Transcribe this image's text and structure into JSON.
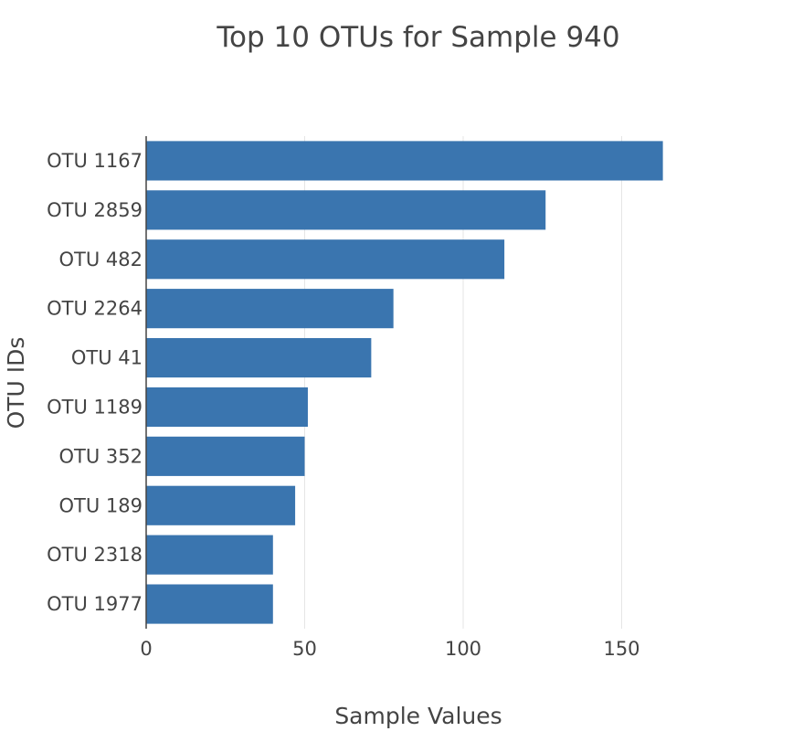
{
  "chart_data": {
    "type": "bar",
    "orientation": "horizontal",
    "title": "Top 10 OTUs for Sample 940",
    "xlabel": "Sample Values",
    "ylabel": "OTU IDs",
    "categories": [
      "OTU 1167",
      "OTU 2859",
      "OTU 482",
      "OTU 2264",
      "OTU 41",
      "OTU 1189",
      "OTU 352",
      "OTU 189",
      "OTU 2318",
      "OTU 1977"
    ],
    "values": [
      163,
      126,
      113,
      78,
      71,
      51,
      50,
      47,
      40,
      40
    ],
    "xlim": [
      0,
      200
    ],
    "xticks": [
      0,
      50,
      100,
      150
    ],
    "xtick_labels": [
      "0",
      "50",
      "100",
      "150"
    ],
    "grid": true,
    "colors": {
      "bar": "#3a75af",
      "grid": "#e5e5e5",
      "axis": "#444444",
      "text": "#444444"
    }
  }
}
